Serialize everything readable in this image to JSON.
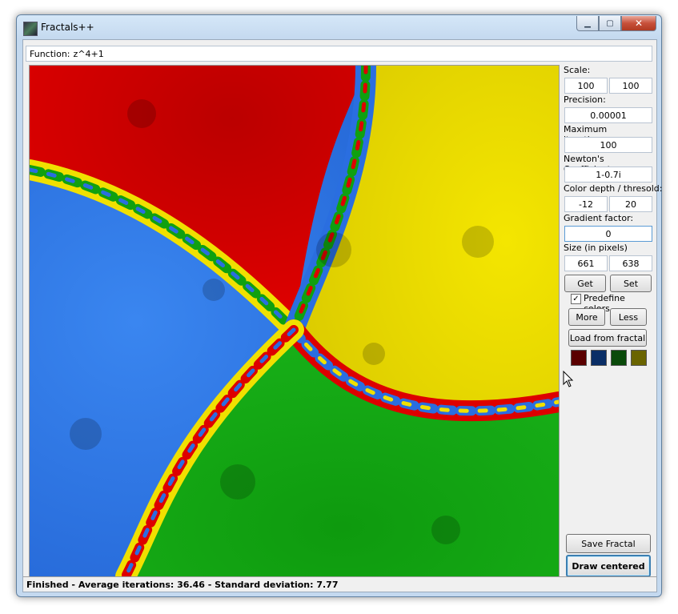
{
  "window": {
    "title": "Fractals++"
  },
  "function": {
    "label": "Function:",
    "value": "z^4+1"
  },
  "panel": {
    "scale_label": "Scale:",
    "scale_x": "100",
    "scale_y": "100",
    "precision_label": "Precision:",
    "precision": "0.00001",
    "max_iter_label": "Maximum iterations:",
    "max_iter": "100",
    "newton_label": "Newton's Coefficient:",
    "newton": "1-0.7i",
    "color_depth_label": "Color depth / thresold:",
    "color_depth": "-12",
    "threshold": "20",
    "gradient_label": "Gradient factor:",
    "gradient": "0",
    "size_label": "Size (in pixels)",
    "size_w": "661",
    "size_h": "638",
    "get_label": "Get",
    "set_label": "Set",
    "predefine_label": "Predefine colors",
    "predefine_checked": "✓",
    "more_label": "More",
    "less_label": "Less",
    "load_label": "Load from fractal",
    "swatches": [
      "#5a0000",
      "#0a2e66",
      "#0a4a0a",
      "#6a6400"
    ],
    "save_label": "Save Fractal",
    "draw_label": "Draw centered"
  },
  "status": {
    "text": "Finished - Average iterations: 36.46 - Standard deviation: 7.77"
  },
  "fractal_colors": {
    "red": "#dd0000",
    "yellow": "#f0e000",
    "green": "#10a010",
    "blue": "#2a6ee0"
  }
}
